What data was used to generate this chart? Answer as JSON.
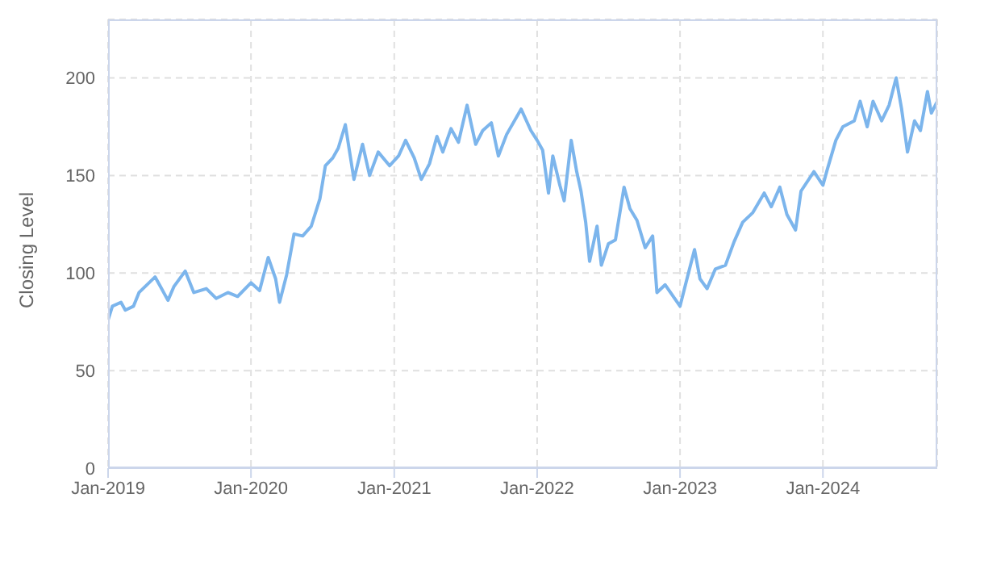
{
  "chart_data": {
    "type": "line",
    "ylabel": "Closing Level",
    "x": [
      "2019-01-01",
      "2019-01-12",
      "2019-02-03",
      "2019-02-14",
      "2019-03-07",
      "2019-03-21",
      "2019-05-01",
      "2019-05-15",
      "2019-06-03",
      "2019-06-18",
      "2019-07-17",
      "2019-08-08",
      "2019-09-09",
      "2019-10-04",
      "2019-11-03",
      "2019-11-28",
      "2020-01-01",
      "2020-01-23",
      "2020-02-14",
      "2020-03-04",
      "2020-03-14",
      "2020-04-01",
      "2020-04-20",
      "2020-05-12",
      "2020-06-03",
      "2020-06-25",
      "2020-07-09",
      "2020-07-28",
      "2020-08-11",
      "2020-08-29",
      "2020-09-20",
      "2020-10-12",
      "2020-10-30",
      "2020-11-21",
      "2020-12-20",
      "2021-01-12",
      "2021-01-30",
      "2021-02-21",
      "2021-03-11",
      "2021-04-01",
      "2021-04-20",
      "2021-05-05",
      "2021-05-26",
      "2021-06-14",
      "2021-07-06",
      "2021-07-28",
      "2021-08-15",
      "2021-09-06",
      "2021-09-24",
      "2021-10-15",
      "2021-11-21",
      "2021-12-16",
      "2022-01-01",
      "2022-01-15",
      "2022-01-30",
      "2022-02-10",
      "2022-02-28",
      "2022-03-11",
      "2022-03-29",
      "2022-04-12",
      "2022-04-23",
      "2022-05-05",
      "2022-05-15",
      "2022-06-03",
      "2022-06-14",
      "2022-07-02",
      "2022-07-20",
      "2022-08-11",
      "2022-08-26",
      "2022-09-13",
      "2022-10-04",
      "2022-10-23",
      "2022-11-03",
      "2022-11-24",
      "2023-01-01",
      "2023-01-20",
      "2023-02-07",
      "2023-02-21",
      "2023-03-11",
      "2023-04-01",
      "2023-04-27",
      "2023-05-19",
      "2023-06-10",
      "2023-07-06",
      "2023-08-04",
      "2023-08-22",
      "2023-09-13",
      "2023-10-01",
      "2023-10-23",
      "2023-11-06",
      "2023-12-09",
      "2024-01-01",
      "2024-01-12",
      "2024-02-03",
      "2024-02-21",
      "2024-03-21",
      "2024-04-05",
      "2024-04-23",
      "2024-05-08",
      "2024-05-30",
      "2024-06-18",
      "2024-07-06",
      "2024-07-20",
      "2024-08-04",
      "2024-08-22",
      "2024-09-06",
      "2024-09-24",
      "2024-10-04",
      "2024-10-19"
    ],
    "series": [
      {
        "color": "#7cb5ec",
        "values": [
          76,
          83,
          85,
          81,
          83,
          90,
          98,
          93,
          86,
          93,
          101,
          90,
          92,
          87,
          90,
          88,
          95,
          91,
          108,
          97,
          85,
          99,
          120,
          119,
          124,
          138,
          155,
          159,
          164,
          176,
          148,
          166,
          150,
          162,
          155,
          160,
          168,
          159,
          148,
          156,
          170,
          162,
          174,
          167,
          186,
          166,
          173,
          177,
          160,
          171,
          184,
          173,
          168,
          163,
          141,
          160,
          145,
          137,
          168,
          152,
          142,
          126,
          106,
          124,
          104,
          115,
          117,
          144,
          133,
          127,
          113,
          119,
          90,
          94,
          83,
          98,
          112,
          97,
          92,
          102,
          104,
          116,
          126,
          131,
          141,
          134,
          144,
          130,
          122,
          142,
          152,
          145,
          153,
          168,
          175,
          178,
          188,
          175,
          188,
          178,
          186,
          200,
          184,
          162,
          178,
          173,
          193,
          182,
          188
        ]
      }
    ],
    "xlim": [
      "2019-01-01",
      "2024-10-19"
    ],
    "xticks": [
      {
        "value": "2019-01-01",
        "label": "Jan-2019"
      },
      {
        "value": "2020-01-01",
        "label": "Jan-2020"
      },
      {
        "value": "2021-01-01",
        "label": "Jan-2021"
      },
      {
        "value": "2022-01-01",
        "label": "Jan-2022"
      },
      {
        "value": "2023-01-01",
        "label": "Jan-2023"
      },
      {
        "value": "2024-01-01",
        "label": "Jan-2024"
      }
    ],
    "ylim": [
      0,
      230
    ],
    "yticks": [
      0,
      50,
      100,
      150,
      200
    ],
    "grid": true,
    "legend": false,
    "marker": "none",
    "line_style": "solid"
  }
}
